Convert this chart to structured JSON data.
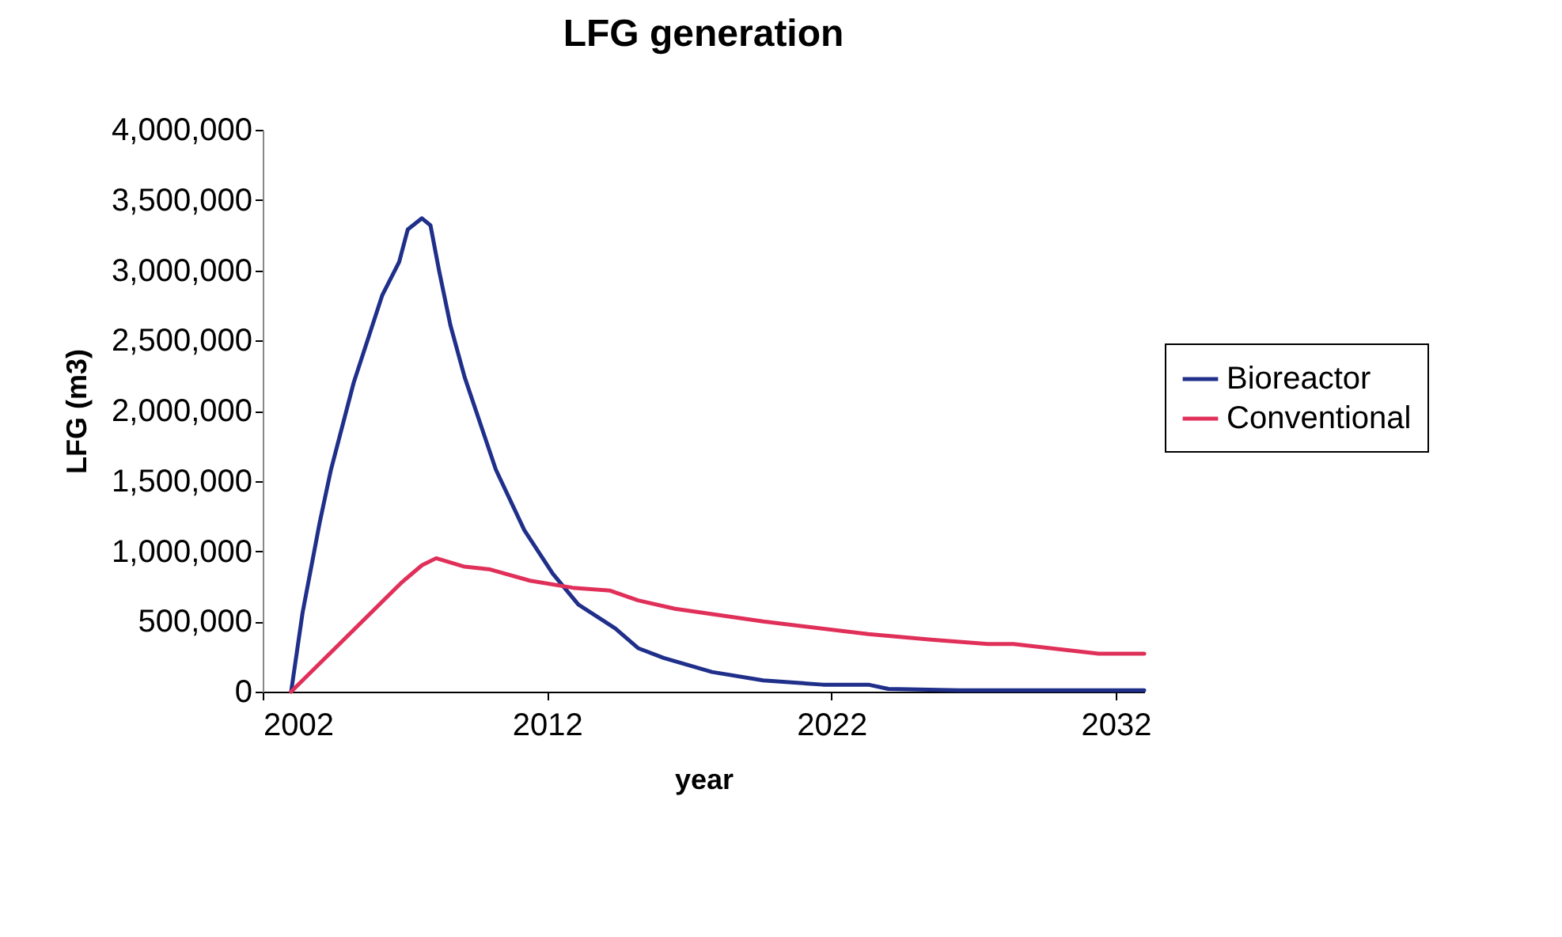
{
  "chart_data": {
    "type": "line",
    "title": "LFG generation",
    "xlabel": "year",
    "ylabel": "LFG (m3)",
    "xlim": [
      2002,
      2033
    ],
    "xticks": [
      2002,
      2012,
      2022,
      2032
    ],
    "ylim": [
      0,
      4000000
    ],
    "yticks": [
      0,
      {
        "value": 500000,
        "label": "500,000"
      },
      {
        "value": 1000000,
        "label": "1,000,000"
      },
      {
        "value": 1500000,
        "label": "1,500,000"
      },
      {
        "value": 2000000,
        "label": "2,000,000"
      },
      {
        "value": 2500000,
        "label": "2,500,000"
      },
      {
        "value": 3000000,
        "label": "3,000,000"
      },
      {
        "value": 3500000,
        "label": "3,500,000"
      },
      {
        "value": 4000000,
        "label": "4,000,000"
      }
    ],
    "grid": false,
    "legend": "right",
    "marker": "none",
    "line_style": "solid",
    "series": [
      {
        "name": "Bioreactor",
        "color": "#1f2f8a",
        "x": [
          2003,
          2003.4,
          2004,
          2004.4,
          2005.2,
          2006.2,
          2006.8,
          2007.1,
          2007.6,
          2007.9,
          2008.2,
          2008.6,
          2009.1,
          2010.2,
          2011.2,
          2012.2,
          2013.1,
          2014.4,
          2015.2,
          2016.1,
          2017.8,
          2019.6,
          2021.7,
          2023.3,
          2024,
          2026.5,
          2033
        ],
        "values": [
          0,
          560000,
          1200000,
          1580000,
          2200000,
          2820000,
          3060000,
          3290000,
          3370000,
          3320000,
          3000000,
          2610000,
          2240000,
          1580000,
          1150000,
          840000,
          620000,
          450000,
          310000,
          240000,
          140000,
          80000,
          50000,
          50000,
          20000,
          10000,
          10000
        ]
      },
      {
        "name": "Conventional",
        "color": "#e0305a",
        "x": [
          2003,
          2006.9,
          2007.6,
          2008.1,
          2009.1,
          2010,
          2011.4,
          2012.9,
          2014.2,
          2015.2,
          2016.5,
          2019.6,
          2023.3,
          2025.5,
          2027.5,
          2028.4,
          2031.4,
          2033
        ],
        "values": [
          0,
          780000,
          900000,
          950000,
          890000,
          870000,
          790000,
          740000,
          720000,
          650000,
          590000,
          500000,
          410000,
          370000,
          340000,
          340000,
          270000,
          270000
        ]
      }
    ]
  }
}
